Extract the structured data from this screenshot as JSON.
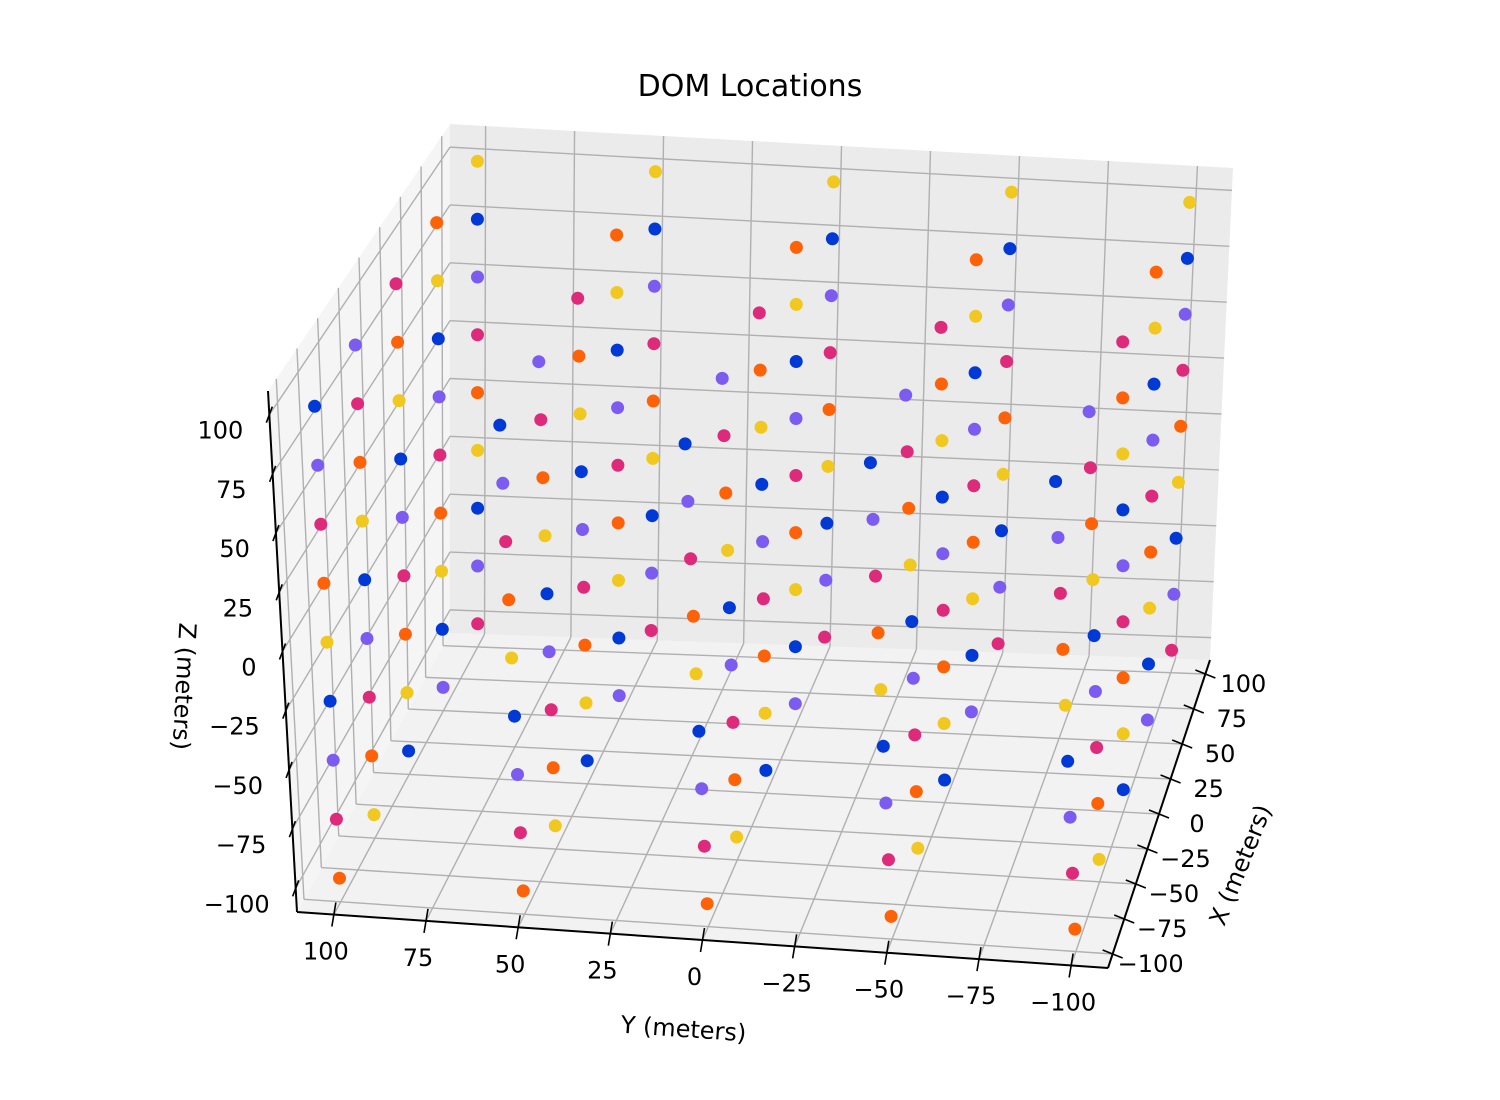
{
  "chart_data": {
    "type": "scatter",
    "title": "DOM Locations",
    "xlabel": "X (meters)",
    "ylabel": "Y (meters)",
    "zlabel": "Z (meters)",
    "xlim": [
      -110,
      110
    ],
    "ylim": [
      -110,
      110
    ],
    "zlim": [
      -110,
      110
    ],
    "xticks": [
      100,
      75,
      50,
      25,
      0,
      -25,
      -50,
      -75,
      -100
    ],
    "yticks": [
      100,
      75,
      50,
      25,
      0,
      -25,
      -50,
      -75,
      -100
    ],
    "zticks": [
      100,
      75,
      50,
      25,
      0,
      -25,
      -50,
      -75,
      -100
    ],
    "x_positions": [
      -100,
      -50,
      0,
      50,
      100
    ],
    "y_positions": [
      100,
      50,
      0,
      -50,
      -100
    ],
    "layer_colors": [
      "#0039d6",
      "#7c5cf0",
      "#de2a7a",
      "#fd6208",
      "#f0c820"
    ],
    "string_color_order": [
      [
        0,
        1,
        2,
        3,
        4
      ],
      [
        1,
        2,
        3,
        4,
        0
      ],
      [
        2,
        3,
        4,
        0,
        1
      ],
      [
        3,
        4,
        0,
        1,
        2
      ],
      [
        4,
        0,
        1,
        2,
        3
      ]
    ],
    "z_values": [
      100,
      75,
      50,
      25,
      0,
      -25,
      -50,
      -75,
      -100
    ],
    "grid": true
  }
}
